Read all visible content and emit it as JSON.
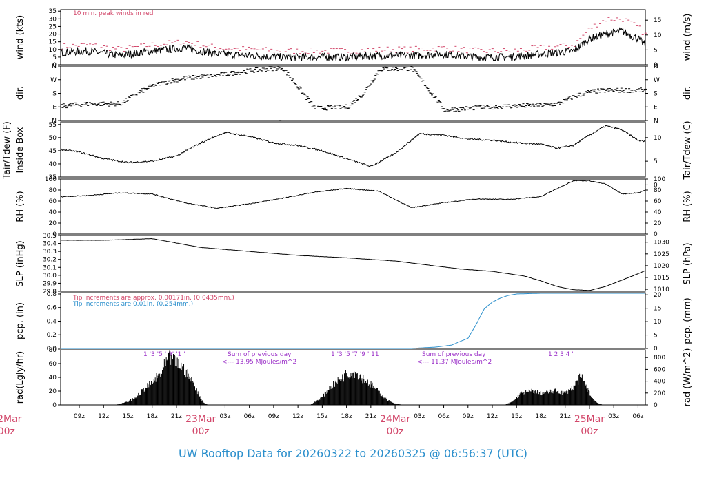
{
  "title": "UW Rooftop Data for 20260322  to  20260325 @ 06:56:37  (UTC)",
  "colors": {
    "red": "#d2476a",
    "blue": "#2b8fcc",
    "purple": "#9b30c8",
    "line": "#000000"
  },
  "x_axis": {
    "hour_ticks": [
      "09z",
      "12z",
      "15z",
      "18z",
      "21z",
      "03z",
      "06z",
      "09z",
      "12z",
      "15z",
      "18z",
      "21z",
      "03z",
      "06z",
      "09z",
      "12z",
      "15z",
      "18z",
      "21z",
      "03z",
      "06z"
    ],
    "date_labels": [
      {
        "line1": "22Mar",
        "line2": "00z"
      },
      {
        "line1": "23Mar",
        "line2": "00z"
      },
      {
        "line1": "24Mar",
        "line2": "00z"
      },
      {
        "line1": "25Mar",
        "line2": "00z"
      }
    ]
  },
  "panels": {
    "wind": {
      "ylabel_left": "wind (kts)",
      "ylabel_right": "wind (m/s)",
      "left_ticks": [
        "0",
        "5",
        "10",
        "15",
        "20",
        "25",
        "30",
        "35"
      ],
      "right_ticks": [
        "0",
        "5",
        "10",
        "15"
      ],
      "note": "10 min. peak winds in red"
    },
    "dir": {
      "ylabel_left": "dir.",
      "ylabel_right": "dir.",
      "left_ticks": [
        "N",
        "E",
        "S",
        "W",
        "N"
      ],
      "right_ticks": [
        "N",
        "E",
        "S",
        "W",
        "N"
      ]
    },
    "temp": {
      "ylabel_left_1": "Tair/Tdew (F)",
      "ylabel_left_2": "Inside Box",
      "ylabel_right": "Tair/Tdew (C)",
      "left_ticks": [
        "35",
        "40",
        "45",
        "50",
        "55"
      ],
      "right_ticks": [
        "0",
        "5",
        "10"
      ]
    },
    "rh": {
      "ylabel_left": "RH (%)",
      "ylabel_right": "RH (%)",
      "left_ticks": [
        "0",
        "20",
        "40",
        "60",
        "80",
        "100"
      ],
      "right_ticks": [
        "0",
        "20",
        "40",
        "60",
        "80",
        "100"
      ]
    },
    "slp": {
      "ylabel_left": "SLP (inHg)",
      "ylabel_right": "SLP (hPa)",
      "left_ticks": [
        "29.8",
        "29.9",
        "30.0",
        "30.1",
        "30.2",
        "30.3",
        "30.4",
        "30.5"
      ],
      "right_ticks": [
        "1010",
        "1015",
        "1020",
        "1025",
        "1030"
      ]
    },
    "pcp": {
      "ylabel_left": "pcp. (in)",
      "ylabel_right": "pcp. (mm)",
      "left_ticks": [
        "0.0",
        "0.2",
        "0.4",
        "0.6",
        "0.8"
      ],
      "right_ticks": [
        "0",
        "5",
        "10",
        "15",
        "20"
      ],
      "note_red": "Tip increments are approx. 0.00171in. (0.0435mm.)",
      "note_blue": "Tip increments are 0.01in. (0.254mm.)"
    },
    "rad": {
      "ylabel_left": "rad(Lgly/hr)",
      "ylabel_right": "rad (W/m^2)",
      "left_ticks": [
        "0",
        "20",
        "40",
        "60",
        "80"
      ],
      "right_ticks": [
        "0",
        "200",
        "400",
        "600",
        "800"
      ],
      "sum_title": "Sum of previous day",
      "sum_1": "<--- 13.95 MJoules/m^2",
      "sum_2": "<--- 11.37 MJoules/m^2",
      "hour_marks_1": "1  '3 '5  '  9'  '1 '",
      "hour_marks_2": "1  '3  '5 '7 '9   '  11",
      "hour_marks_3": "1   2   3   4  '"
    }
  },
  "chart_data": {
    "type": "line",
    "x_unit": "hours since 2026-03-22 00z",
    "x_range": [
      6.7,
      78.9
    ],
    "series": [
      {
        "name": "wind",
        "unit": "kts",
        "ylim": [
          0,
          36
        ],
        "x": [
          6.7,
          10,
          14,
          18,
          22,
          26,
          30,
          34,
          38,
          42,
          46,
          50,
          54,
          58,
          62,
          66,
          70,
          72,
          74,
          76,
          78,
          78.9
        ],
        "y": [
          8,
          9,
          6,
          9,
          11,
          7,
          6,
          5,
          5,
          5,
          6,
          6,
          7,
          5,
          5,
          7,
          9,
          17,
          20,
          22,
          17,
          13
        ]
      },
      {
        "name": "peak",
        "unit": "kts",
        "ylim": [
          0,
          36
        ],
        "x": [
          6.7,
          10,
          14,
          18,
          22,
          26,
          30,
          34,
          38,
          42,
          46,
          50,
          54,
          58,
          62,
          66,
          70,
          72,
          74,
          76,
          78,
          78.9
        ],
        "y": [
          12,
          13,
          10,
          13,
          15,
          11,
          10,
          9,
          9,
          9,
          10,
          10,
          11,
          9,
          9,
          11,
          13,
          24,
          30,
          30,
          24,
          19
        ]
      },
      {
        "name": "dir",
        "unit": "deg",
        "ylim": [
          0,
          360
        ],
        "x": [
          6.7,
          10,
          14,
          16,
          18,
          20,
          22,
          26,
          30,
          34,
          38,
          42,
          44,
          46,
          50,
          54,
          58,
          62,
          66,
          68,
          70,
          72,
          74,
          78.9
        ],
        "y": [
          95,
          110,
          110,
          180,
          230,
          260,
          280,
          300,
          330,
          350,
          80,
          90,
          180,
          340,
          345,
          70,
          85,
          95,
          100,
          110,
          160,
          190,
          200,
          200
        ]
      },
      {
        "name": "Tair",
        "unit": "F",
        "ylim": [
          35,
          56
        ],
        "x": [
          6.7,
          9,
          12,
          15,
          18,
          21,
          24,
          27,
          30,
          33,
          36,
          39,
          42,
          45,
          48,
          51,
          54,
          57,
          60,
          63,
          66,
          68,
          70,
          72,
          74,
          76,
          78,
          78.9
        ],
        "y": [
          45.5,
          44.5,
          42,
          40.5,
          41,
          43,
          48,
          52,
          50.5,
          48,
          47,
          45,
          42,
          39,
          44,
          51.5,
          51,
          49.5,
          49,
          48,
          47.5,
          46,
          47,
          51,
          54.5,
          53,
          49,
          48.5
        ]
      },
      {
        "name": "RH",
        "unit": "%",
        "ylim": [
          0,
          100
        ],
        "x": [
          6.7,
          10,
          14,
          18,
          22,
          26,
          30,
          34,
          38,
          42,
          46,
          50,
          54,
          58,
          62,
          66,
          70,
          72,
          74,
          76,
          78,
          78.9
        ],
        "y": [
          68,
          70,
          75,
          73,
          57,
          47,
          55,
          65,
          76,
          83,
          78,
          48,
          57,
          64,
          63,
          68,
          97,
          97,
          91,
          73,
          75,
          80
        ]
      },
      {
        "name": "SLP",
        "unit": "inHg",
        "ylim": [
          29.8,
          30.5
        ],
        "x": [
          6.7,
          12,
          18,
          24,
          30,
          36,
          42,
          48,
          52,
          56,
          60,
          64,
          66,
          68,
          70,
          72,
          74,
          76,
          78,
          78.9
        ],
        "y": [
          30.44,
          30.44,
          30.46,
          30.35,
          30.3,
          30.25,
          30.22,
          30.18,
          30.13,
          30.08,
          30.05,
          29.99,
          29.93,
          29.86,
          29.82,
          29.81,
          29.86,
          29.94,
          30.02,
          30.06
        ]
      },
      {
        "name": "pcp",
        "unit": "in",
        "ylim": [
          0,
          0.82
        ],
        "x": [
          6.7,
          50,
          53,
          55,
          57,
          58,
          59,
          60,
          61,
          62,
          63,
          66,
          70,
          78.9
        ],
        "y": [
          0,
          0,
          0.02,
          0.05,
          0.15,
          0.35,
          0.58,
          0.68,
          0.74,
          0.78,
          0.8,
          0.81,
          0.81,
          0.81
        ]
      },
      {
        "name": "rad",
        "unit": "Lgly/hr",
        "ylim": [
          0,
          80
        ],
        "x": [
          13.5,
          15,
          16,
          17,
          18,
          19,
          20,
          20.5,
          21,
          21.5,
          22,
          23,
          24,
          24.5,
          25,
          37.5,
          39,
          40,
          41,
          42,
          43,
          44,
          45,
          46,
          47,
          48,
          49,
          61.5,
          62.5,
          63.5,
          65,
          66,
          67,
          68,
          69,
          70,
          71,
          72,
          72.5,
          73,
          73.7
        ],
        "y": [
          0,
          5,
          12,
          25,
          35,
          48,
          72,
          70,
          65,
          62,
          55,
          35,
          10,
          2,
          0,
          0,
          12,
          28,
          38,
          48,
          52,
          42,
          32,
          20,
          8,
          2,
          0,
          0,
          5,
          18,
          22,
          18,
          20,
          22,
          18,
          28,
          45,
          18,
          8,
          3,
          0
        ]
      }
    ]
  }
}
